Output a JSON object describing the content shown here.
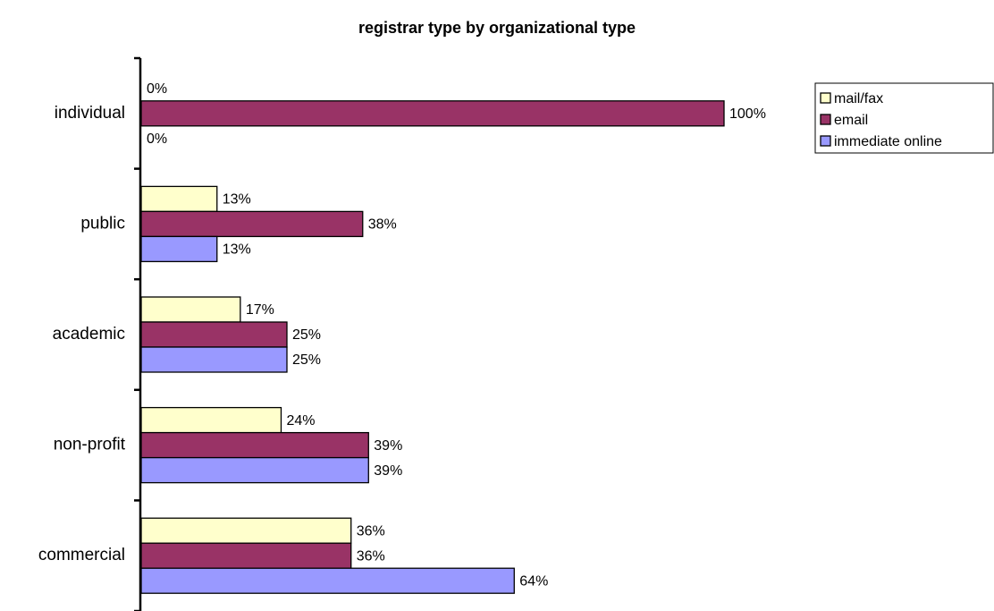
{
  "chart_data": {
    "type": "bar",
    "orientation": "horizontal",
    "title": "registrar type by organizational type",
    "categories": [
      "individual",
      "public",
      "academic",
      "non-profit",
      "commercial"
    ],
    "series": [
      {
        "name": "mail/fax",
        "color": "#ffffcc",
        "values": [
          0,
          13,
          17,
          24,
          36
        ],
        "value_labels": [
          "0%",
          "13%",
          "17%",
          "24%",
          "36%"
        ]
      },
      {
        "name": "email",
        "color": "#993366",
        "values": [
          100,
          38,
          25,
          39,
          36
        ],
        "value_labels": [
          "100%",
          "38%",
          "25%",
          "39%",
          "36%"
        ]
      },
      {
        "name": "immediate online",
        "color": "#9999ff",
        "values": [
          0,
          13,
          25,
          39,
          64
        ],
        "value_labels": [
          "0%",
          "13%",
          "25%",
          "39%",
          "64%"
        ]
      }
    ],
    "xlim": [
      0,
      100
    ],
    "legend": "right"
  }
}
